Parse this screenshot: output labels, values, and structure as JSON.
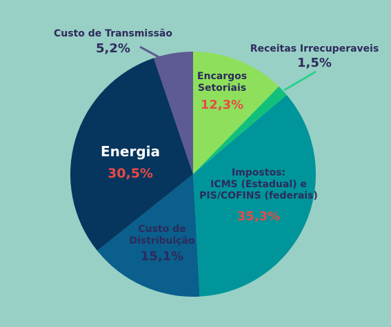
{
  "chart_data": {
    "type": "pie",
    "title": "",
    "slices": [
      {
        "label": "Encargos\nSetoriais",
        "value": 12.3,
        "value_label": "12,3%",
        "color": "#8ee05c",
        "label_color": "#2e2a5c",
        "value_color": "#e94a45"
      },
      {
        "label": "Receitas Irrecuperaveis",
        "value": 1.5,
        "value_label": "1,5%",
        "color": "#12c07b",
        "label_color": "#2e2a5c",
        "value_color": "#2e2a5c"
      },
      {
        "label": "Impostos:\nICMS (Estadual) e\nPIS/COFINS (federais)",
        "value": 35.3,
        "value_label": "35,3%",
        "color": "#00959a",
        "label_color": "#2e2a5c",
        "value_color": "#e94a45"
      },
      {
        "label": "Custo de\nDistribuição",
        "value": 15.1,
        "value_label": "15,1%",
        "color": "#0a5f8c",
        "label_color": "#2e2a5c",
        "value_color": "#2e2a5c"
      },
      {
        "label": "Energia",
        "value": 30.5,
        "value_label": "30,5%",
        "color": "#06355e",
        "label_color": "#ffffff",
        "value_color": "#e94a45"
      },
      {
        "label": "Custo de Transmissão",
        "value": 5.2,
        "value_label": "5,2%",
        "color": "#5e5a92",
        "label_color": "#2e2a5c",
        "value_color": "#2e2a5c"
      }
    ]
  }
}
